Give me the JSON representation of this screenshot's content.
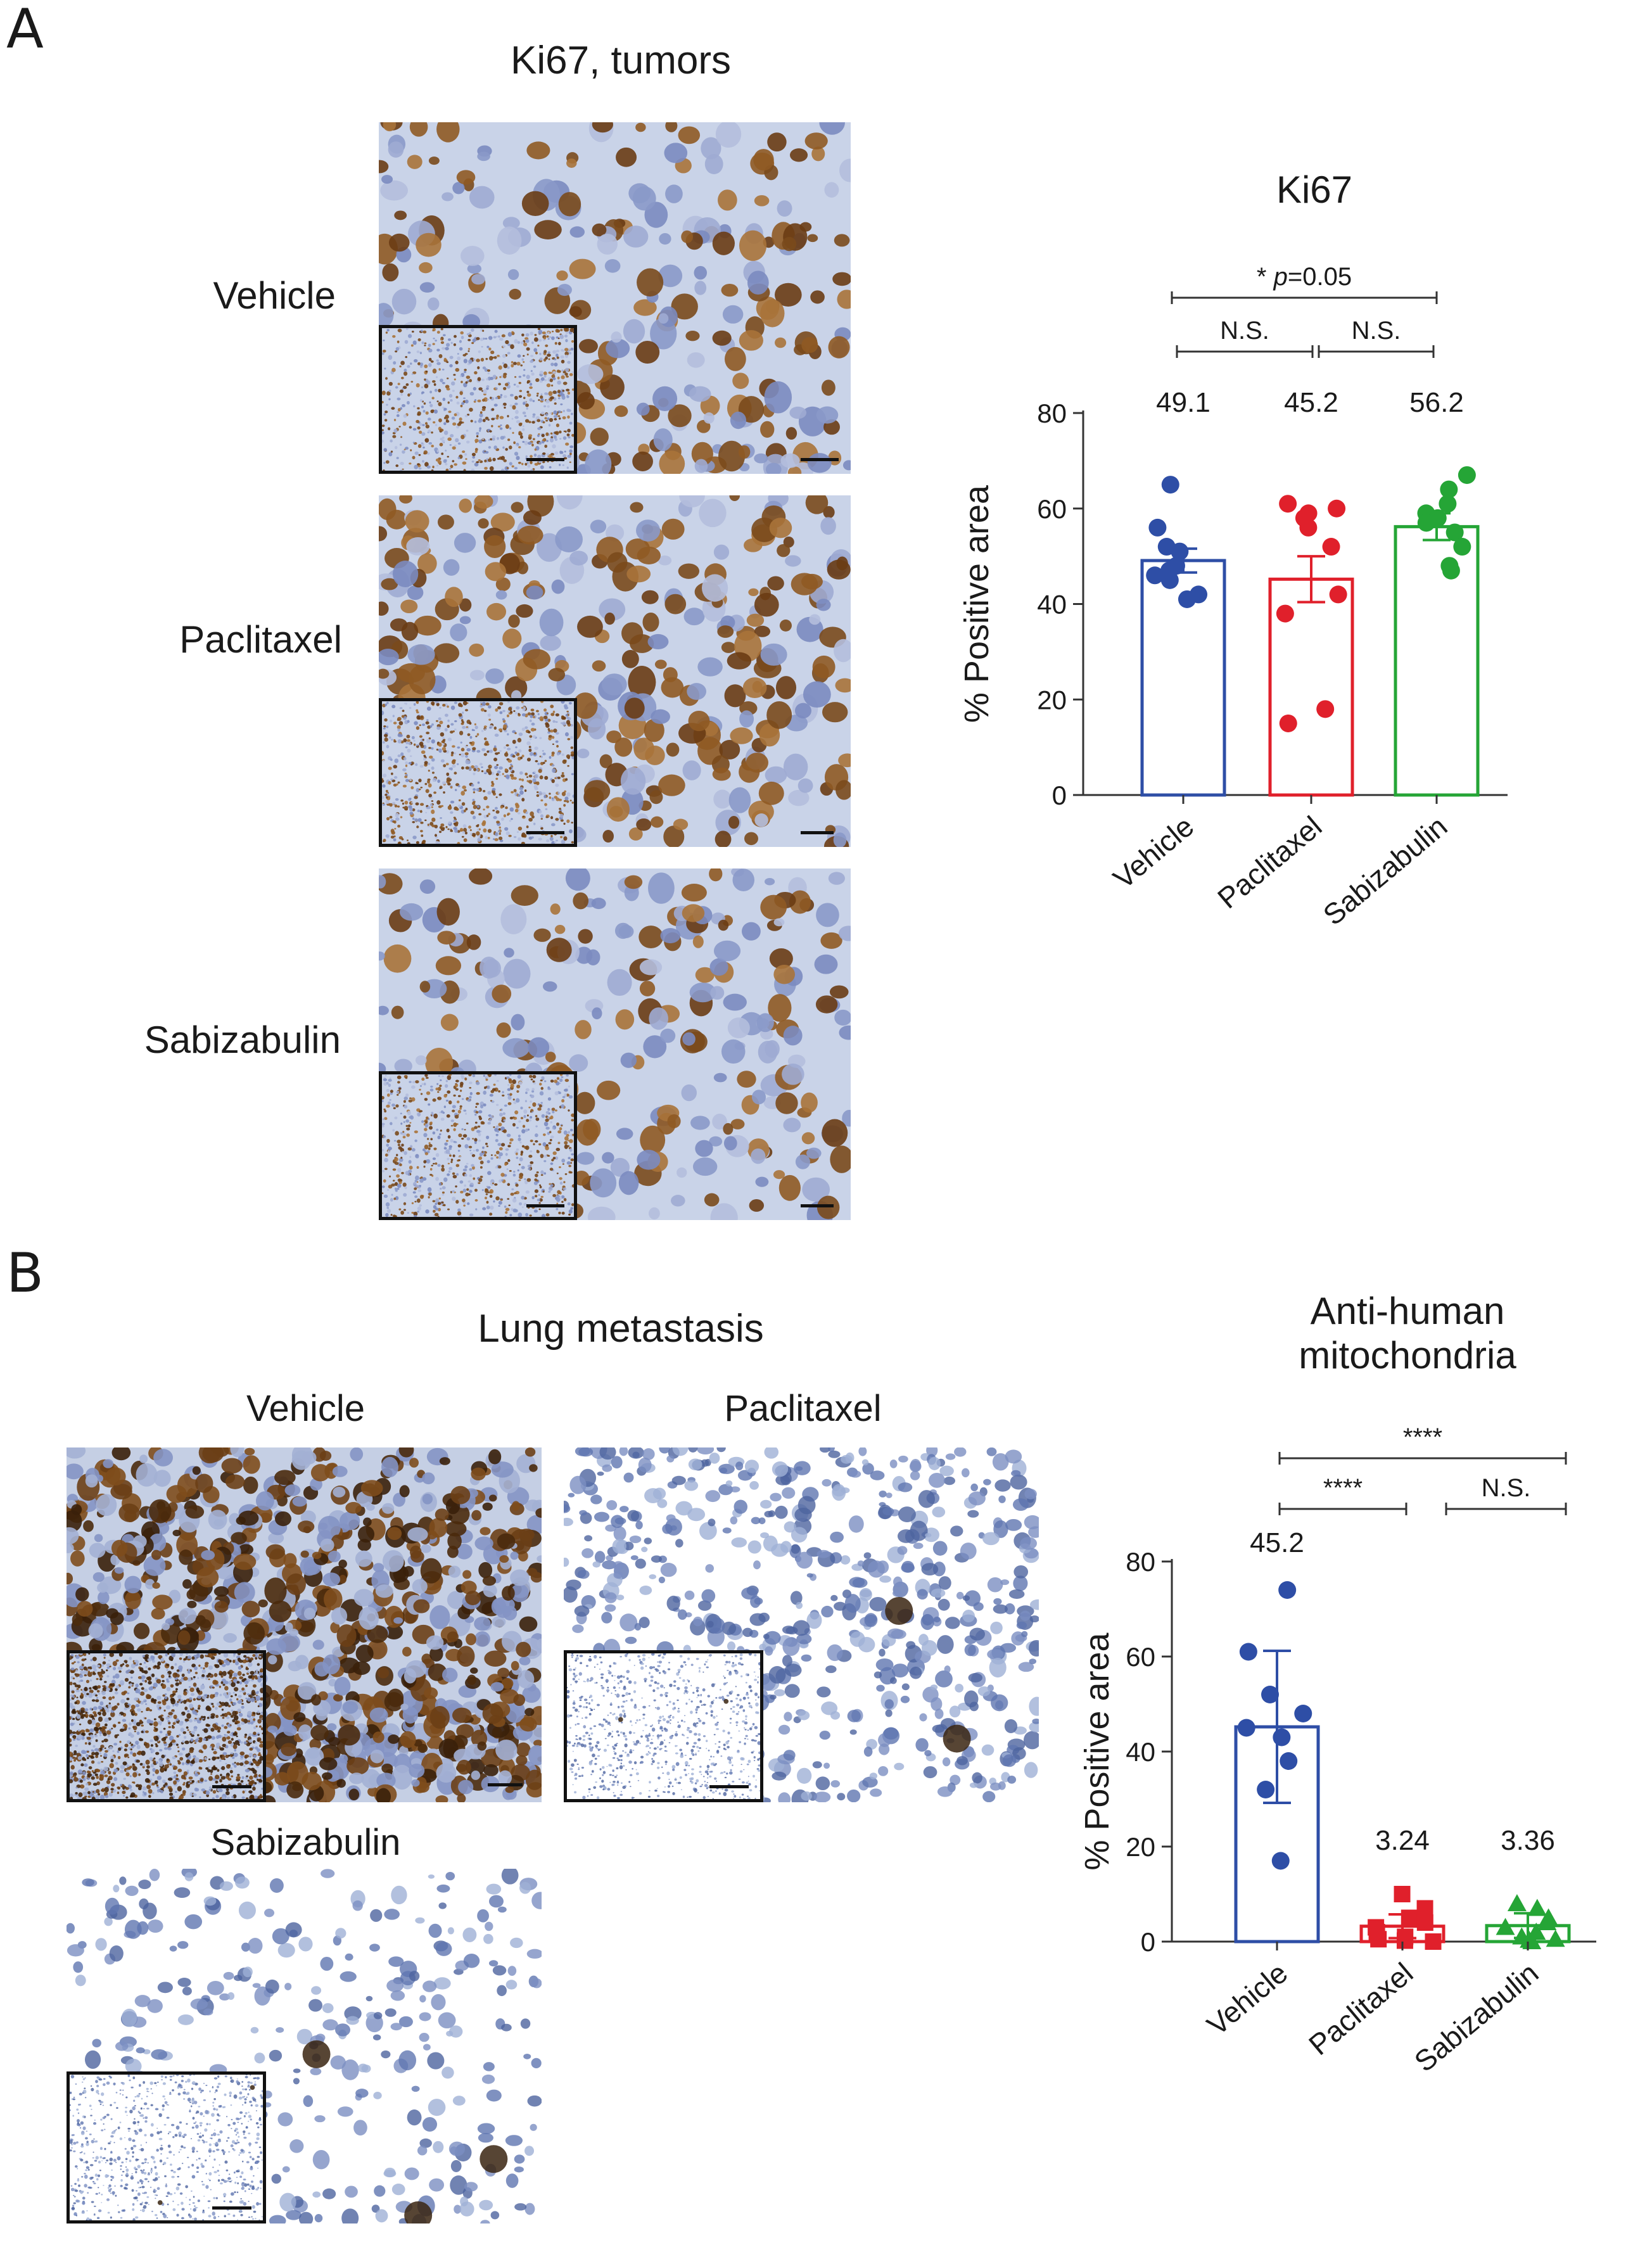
{
  "panels": {
    "a": {
      "letter": "A",
      "title": "Ki67, tumors",
      "rows": [
        "Vehicle",
        "Paclitaxel",
        "Sabizabulin"
      ]
    },
    "b": {
      "letter": "B",
      "title": "Lung metastasis",
      "images": [
        "Vehicle",
        "Paclitaxel",
        "Sabizabulin"
      ]
    }
  },
  "chart_data": [
    {
      "type": "bar",
      "title": "Ki67",
      "ylabel": "% Positive area",
      "ylim": [
        0,
        80
      ],
      "yticks": [
        0,
        20,
        40,
        60,
        80
      ],
      "categories": [
        "Vehicle",
        "Paclitaxel",
        "Sabizabulin"
      ],
      "values": [
        49.1,
        45.2,
        56.2
      ],
      "value_labels": [
        "49.1",
        "45.2",
        "56.2"
      ],
      "error": [
        2.5,
        4.8,
        2.8
      ],
      "colors": [
        "#2e4ea6",
        "#e0202b",
        "#25a536"
      ],
      "points": [
        [
          65,
          56,
          52,
          51,
          48,
          47,
          46,
          45,
          42,
          41
        ],
        [
          61,
          60,
          59,
          58,
          56,
          52,
          42,
          38,
          18,
          15
        ],
        [
          67,
          64,
          61,
          59,
          58,
          57,
          55,
          52,
          48,
          47
        ]
      ],
      "markers": [
        "circle",
        "circle",
        "circle"
      ],
      "comparisons": [
        {
          "from": 0,
          "to": 2,
          "label": "* p=0.05",
          "label_prefix": "* ",
          "label_italic": "p",
          "label_suffix": "=0.05"
        },
        {
          "from": 0,
          "to": 1,
          "label": "N.S."
        },
        {
          "from": 1,
          "to": 2,
          "label": "N.S."
        }
      ]
    },
    {
      "type": "bar",
      "title": "Anti-human mitochondria",
      "title_lines": [
        "Anti-human",
        "mitochondria"
      ],
      "ylabel": "% Positive area",
      "ylim": [
        0,
        80
      ],
      "yticks": [
        0,
        20,
        40,
        60,
        80
      ],
      "categories": [
        "Vehicle",
        "Paclitaxel",
        "Sabizabulin"
      ],
      "values": [
        45.2,
        3.24,
        3.36
      ],
      "value_labels": [
        "45.2",
        "3.24",
        "3.36"
      ],
      "error": [
        16,
        2.5,
        2.6
      ],
      "colors": [
        "#2e4ea6",
        "#e0202b",
        "#25a536"
      ],
      "points": [
        [
          74,
          61,
          52,
          48,
          45,
          43,
          38,
          32,
          17
        ],
        [
          10,
          7,
          5,
          4,
          3,
          2,
          1,
          0.5,
          0.2,
          0
        ],
        [
          8,
          7,
          5,
          4,
          3,
          2,
          1,
          0.5,
          0.3,
          0
        ]
      ],
      "markers": [
        "circle",
        "square",
        "triangle"
      ],
      "comparisons": [
        {
          "from": 0,
          "to": 2,
          "label": "****"
        },
        {
          "from": 0,
          "to": 1,
          "label": "****"
        },
        {
          "from": 1,
          "to": 2,
          "label": "N.S."
        }
      ]
    }
  ]
}
